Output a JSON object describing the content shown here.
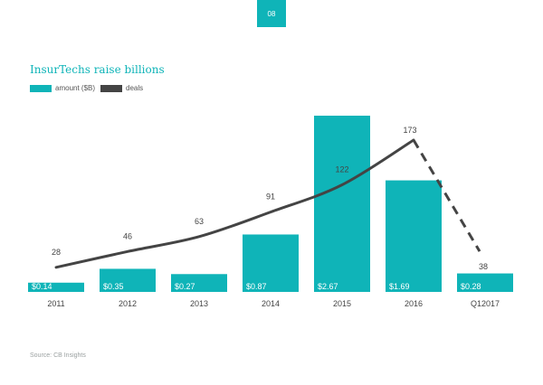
{
  "page": {
    "number": "08",
    "source": "Source: CB Insights"
  },
  "colors": {
    "accent": "#0fb4b8",
    "line": "#444444",
    "text": "#444444"
  },
  "chart_data": {
    "type": "bar",
    "title": "InsurTechs raise billions",
    "categories": [
      "2011",
      "2012",
      "2013",
      "2014",
      "2015",
      "2016",
      "Q12017"
    ],
    "series": [
      {
        "name": "amount ($B)",
        "type": "bar",
        "values": [
          0.14,
          0.35,
          0.27,
          0.87,
          2.67,
          1.69,
          0.28
        ],
        "labels": [
          "$0.14",
          "$0.35",
          "$0.27",
          "$0.87",
          "$2.67",
          "$1.69",
          "$0.28"
        ]
      },
      {
        "name": "deals",
        "type": "line",
        "values": [
          28,
          46,
          63,
          91,
          122,
          173,
          38
        ],
        "labels": [
          "28",
          "46",
          "63",
          "91",
          "122",
          "173",
          "38"
        ],
        "dashed_last_segment": true
      }
    ],
    "legend": [
      {
        "label": "amount ($B)",
        "color": "#0fb4b8"
      },
      {
        "label": "deals",
        "color": "#444444"
      }
    ],
    "xlabel": "",
    "ylabel": "",
    "ylim_amount": [
      0,
      3.0
    ],
    "ylim_deals": [
      0,
      200
    ]
  }
}
